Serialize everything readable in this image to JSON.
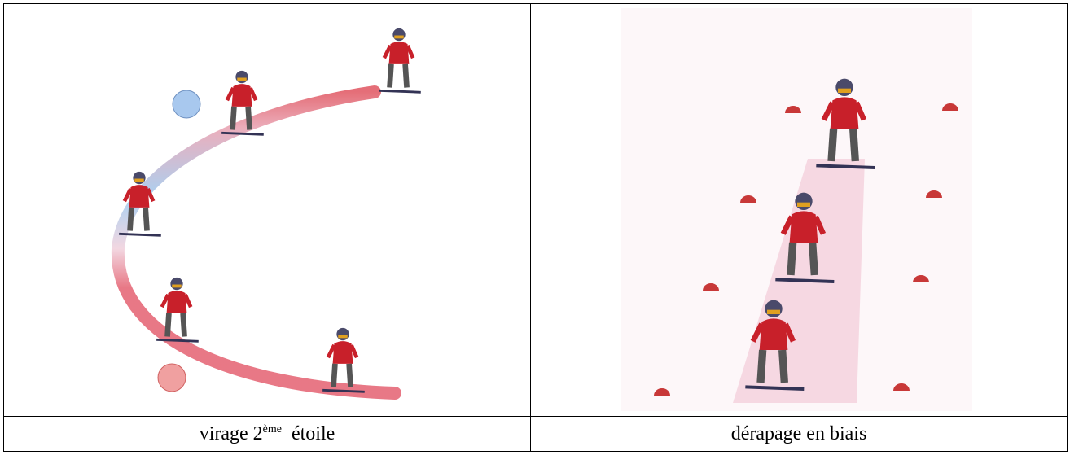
{
  "table": {
    "captions": [
      {
        "text": "virage 2",
        "sup": "ème",
        "rest": "étoile"
      },
      {
        "text": "dérapage en biais"
      }
    ]
  }
}
